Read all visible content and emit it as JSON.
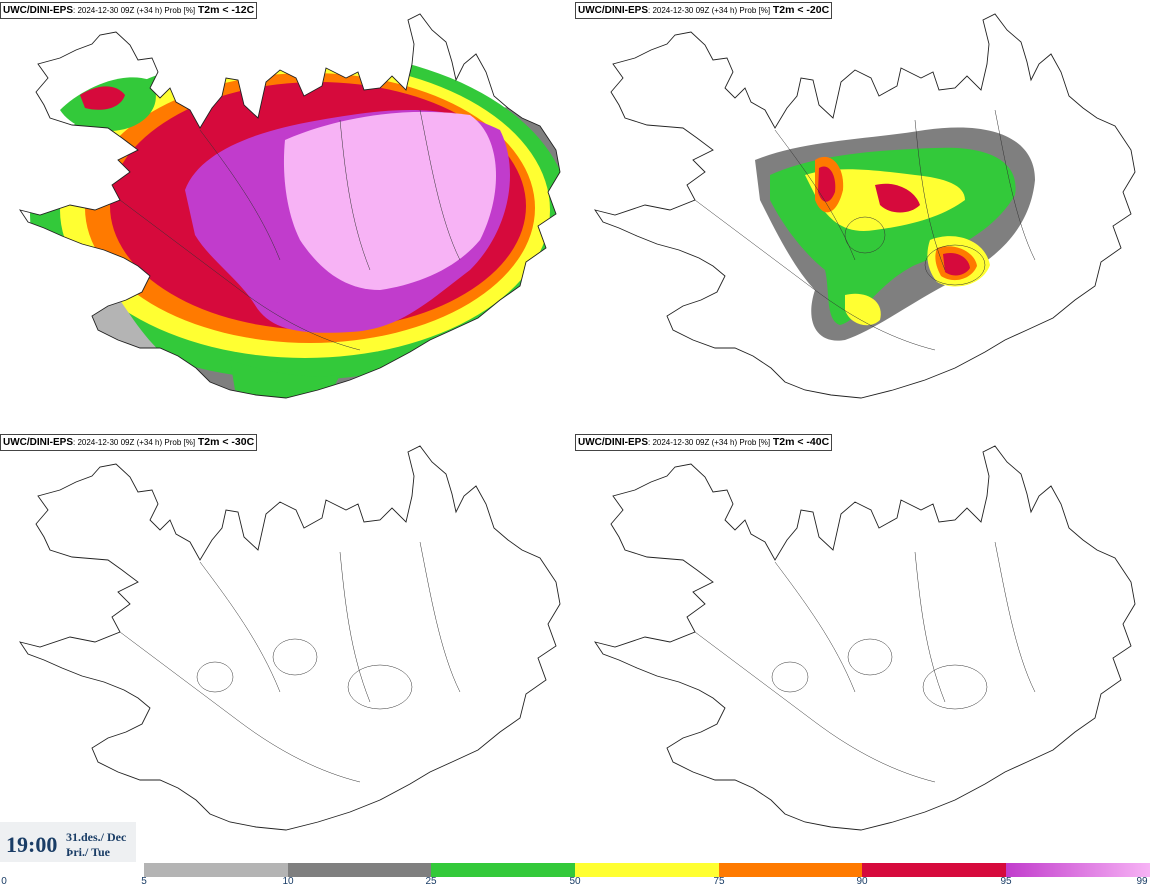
{
  "panels": [
    {
      "model": "UWC/DINI-EPS",
      "meta": ": 2024-12-30 09Z (+34 h) Prob [%]",
      "threshold": "T2m < -12C"
    },
    {
      "model": "UWC/DINI-EPS",
      "meta": ": 2024-12-30 09Z (+34 h) Prob [%]",
      "threshold": "T2m < -20C"
    },
    {
      "model": "UWC/DINI-EPS",
      "meta": ": 2024-12-30 09Z (+34 h) Prob [%]",
      "threshold": "T2m < -30C"
    },
    {
      "model": "UWC/DINI-EPS",
      "meta": ": 2024-12-30 09Z (+34 h) Prob [%]",
      "threshold": "T2m < -40C"
    }
  ],
  "valid_time": {
    "time": "19:00",
    "date_line1": "31.des./ Dec",
    "date_line2": "Þri./ Tue"
  },
  "legend": {
    "ticks": [
      "0",
      "5",
      "10",
      "25",
      "50",
      "75",
      "90",
      "95",
      "99"
    ],
    "colors": {
      "5-10": "#b4b4b4",
      "10-25": "#7f7f7f",
      "25-50": "#33c93a",
      "50-75": "#ffff32",
      "75-90": "#ff7a00",
      "90-95": "#d60a3c",
      "95-99": "#c13ccc",
      "99": "#f7b3f5"
    }
  }
}
